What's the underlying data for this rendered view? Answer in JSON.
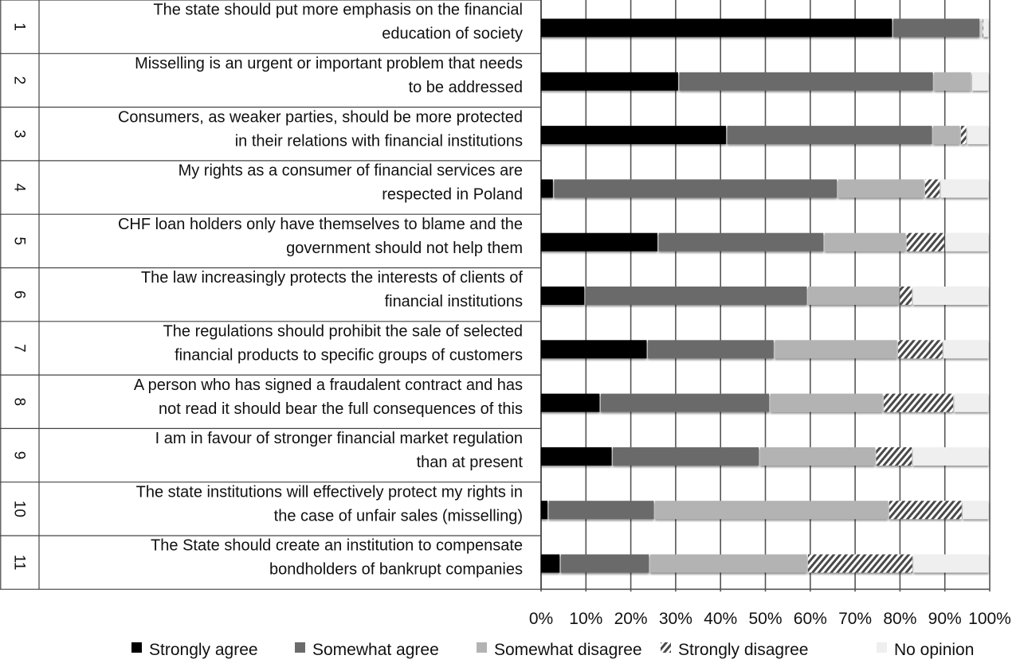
{
  "chart_data": {
    "type": "bar",
    "orientation": "horizontal",
    "stacked": "100%",
    "title": "",
    "xlabel": "",
    "ylabel": "",
    "xlim": [
      0,
      100
    ],
    "grid": true,
    "legend_position": "bottom",
    "xticks": [
      "0%",
      "10%",
      "20%",
      "30%",
      "40%",
      "50%",
      "60%",
      "70%",
      "80%",
      "90%",
      "100%"
    ],
    "row_numbers": [
      "1",
      "2",
      "3",
      "4",
      "5",
      "6",
      "7",
      "8",
      "9",
      "10",
      "11"
    ],
    "categories": [
      [
        "The state should put more emphasis on the financial",
        "education of society"
      ],
      [
        "Misselling is an urgent or important problem that needs",
        "to be addressed"
      ],
      [
        "Consumers, as weaker parties, should be more protected",
        "in their relations with financial institutions"
      ],
      [
        "My rights as a consumer of financial services are",
        "respected in Poland"
      ],
      [
        "CHF loan holders only have themselves to blame and the",
        "government should not help them"
      ],
      [
        "The law increasingly protects the interests of clients of",
        "financial institutions"
      ],
      [
        "The regulations should prohibit the sale of selected",
        "financial products to specific groups of customers"
      ],
      [
        "A person who has signed a fraudalent contract and has",
        "not read it should bear the full consequences of this"
      ],
      [
        "I am in favour of stronger financial market regulation",
        "than at present"
      ],
      [
        "The state institutions will effectively protect my rights in",
        "the case of unfair sales (misselling)"
      ],
      [
        "The State should create an institution to compensate",
        "bondholders of bankrupt companies"
      ]
    ],
    "series": [
      {
        "name": "Strongly agree",
        "color": "#000000",
        "values": [
          78.5,
          30.8,
          41.5,
          2.9,
          26.2,
          9.9,
          23.8,
          13.3,
          16.0,
          1.7,
          4.4
        ]
      },
      {
        "name": "Somewhat agree",
        "color": "#6b6b6b",
        "values": [
          19.5,
          56.8,
          45.9,
          63.3,
          37.0,
          49.6,
          28.3,
          37.8,
          32.8,
          23.7,
          19.9
        ]
      },
      {
        "name": "Somewhat disagree",
        "color": "#b3b3b3",
        "values": [
          0.4,
          8.5,
          6.2,
          19.4,
          18.3,
          20.5,
          27.5,
          25.3,
          25.9,
          52.2,
          35.2
        ]
      },
      {
        "name": "Strongly disagree",
        "color": "hatch",
        "values": [
          0.2,
          0.0,
          1.4,
          3.5,
          8.6,
          2.9,
          10.1,
          15.7,
          8.2,
          16.4,
          23.5
        ]
      },
      {
        "name": "No opinion",
        "color": "#efefef",
        "values": [
          1.4,
          3.9,
          5.0,
          10.9,
          9.9,
          17.1,
          10.3,
          7.9,
          17.1,
          6.0,
          17.0
        ]
      }
    ]
  }
}
